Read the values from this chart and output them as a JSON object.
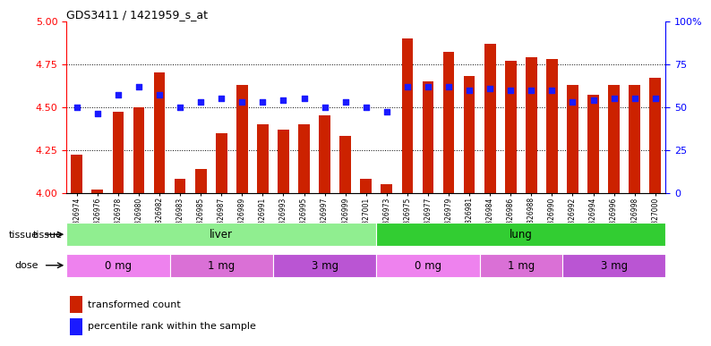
{
  "title": "GDS3411 / 1421959_s_at",
  "samples": [
    "GSM326974",
    "GSM326976",
    "GSM326978",
    "GSM326980",
    "GSM326982",
    "GSM326983",
    "GSM326985",
    "GSM326987",
    "GSM326989",
    "GSM326991",
    "GSM326993",
    "GSM326995",
    "GSM326997",
    "GSM326999",
    "GSM327001",
    "GSM326973",
    "GSM326975",
    "GSM326977",
    "GSM326979",
    "GSM326981",
    "GSM326984",
    "GSM326986",
    "GSM326988",
    "GSM326990",
    "GSM326992",
    "GSM326994",
    "GSM326996",
    "GSM326998",
    "GSM327000"
  ],
  "transformed_count": [
    4.22,
    4.02,
    4.47,
    4.5,
    4.7,
    4.08,
    4.14,
    4.35,
    4.63,
    4.4,
    4.37,
    4.4,
    4.45,
    4.33,
    4.08,
    4.05,
    4.9,
    4.65,
    4.82,
    4.68,
    4.87,
    4.77,
    4.79,
    4.78,
    4.63,
    4.57,
    4.63,
    4.63,
    4.67
  ],
  "percentile_rank": [
    50,
    46,
    57,
    62,
    57,
    50,
    53,
    55,
    53,
    53,
    54,
    55,
    50,
    53,
    50,
    47,
    62,
    62,
    62,
    60,
    61,
    60,
    60,
    60,
    53,
    54,
    55,
    55,
    55
  ],
  "tissue_groups": [
    {
      "label": "liver",
      "start": 0,
      "end": 14,
      "color": "#90ee90"
    },
    {
      "label": "lung",
      "start": 15,
      "end": 28,
      "color": "#32cd32"
    }
  ],
  "dose_groups": [
    {
      "label": "0 mg",
      "start": 0,
      "end": 4,
      "color": "#ee82ee"
    },
    {
      "label": "1 mg",
      "start": 5,
      "end": 9,
      "color": "#da70d6"
    },
    {
      "label": "3 mg",
      "start": 10,
      "end": 14,
      "color": "#ba55d3"
    },
    {
      "label": "0 mg",
      "start": 15,
      "end": 19,
      "color": "#ee82ee"
    },
    {
      "label": "1 mg",
      "start": 20,
      "end": 23,
      "color": "#da70d6"
    },
    {
      "label": "3 mg",
      "start": 24,
      "end": 28,
      "color": "#ba55d3"
    }
  ],
  "bar_color": "#cc2200",
  "dot_color": "#1a1aff",
  "ylim_left": [
    4.0,
    5.0
  ],
  "ylim_right": [
    0,
    100
  ],
  "yticks_left": [
    4.0,
    4.25,
    4.5,
    4.75,
    5.0
  ],
  "yticks_right": [
    0,
    25,
    50,
    75,
    100
  ],
  "bar_bottom": 4.0,
  "dot_size": 18,
  "bar_width": 0.55
}
